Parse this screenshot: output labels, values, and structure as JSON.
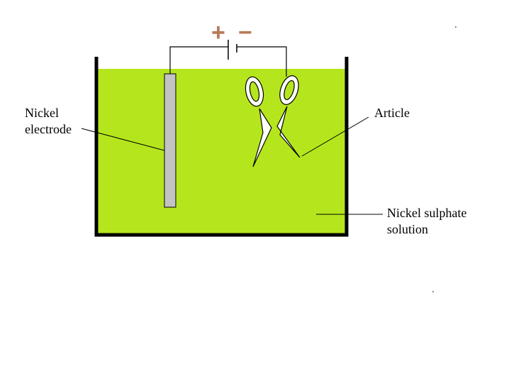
{
  "labels": {
    "electrode_line1": "Nickel",
    "electrode_line2": "electrode",
    "article": "Article",
    "solution_line1": "Nickel sulphate",
    "solution_line2": "solution"
  },
  "battery": {
    "positive_sign": "+",
    "negative_sign": "−"
  },
  "colors": {
    "solution": "#b5e61d",
    "electrode": "#c3c3c3",
    "sign": "#b97a57",
    "outline": "#000000"
  }
}
